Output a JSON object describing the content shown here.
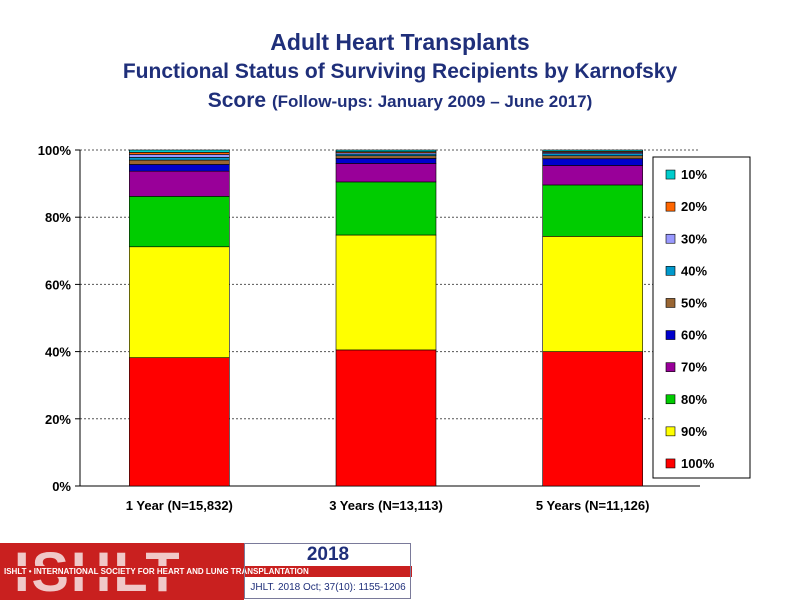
{
  "title": {
    "line1": "Adult Heart Transplants",
    "line2": "Functional Status of Surviving Recipients by Karnofsky",
    "line3_main": "Score",
    "line3_sub": "(Follow-ups: January 2009 – June 2017)"
  },
  "chart_data": {
    "type": "bar",
    "stacked": true,
    "categories": [
      "1 Year (N=15,832)",
      "3 Years (N=13,113)",
      "5 Years (N=11,126)"
    ],
    "y_tick_labels": [
      "0%",
      "20%",
      "40%",
      "60%",
      "80%",
      "100%"
    ],
    "ylim": [
      0,
      100
    ],
    "grid": true,
    "legend_placement": "right",
    "series": [
      {
        "name": "100%",
        "color": "#ff0000",
        "values": [
          38.2,
          40.5,
          40.0
        ]
      },
      {
        "name": "90%",
        "color": "#ffff00",
        "values": [
          33.0,
          34.2,
          34.3
        ]
      },
      {
        "name": "80%",
        "color": "#00cc00",
        "values": [
          15.0,
          15.8,
          15.3
        ]
      },
      {
        "name": "70%",
        "color": "#990099",
        "values": [
          7.5,
          5.5,
          5.8
        ]
      },
      {
        "name": "60%",
        "color": "#0000cc",
        "values": [
          2.0,
          1.5,
          2.0
        ]
      },
      {
        "name": "50%",
        "color": "#996633",
        "values": [
          1.3,
          0.8,
          0.9
        ]
      },
      {
        "name": "40%",
        "color": "#0099cc",
        "values": [
          0.8,
          0.5,
          0.6
        ]
      },
      {
        "name": "30%",
        "color": "#9999ff",
        "values": [
          0.9,
          0.4,
          0.4
        ]
      },
      {
        "name": "20%",
        "color": "#ff6600",
        "values": [
          0.6,
          0.3,
          0.3
        ]
      },
      {
        "name": "10%",
        "color": "#00cccc",
        "values": [
          0.7,
          0.5,
          0.4
        ]
      }
    ]
  },
  "footer": {
    "logo_text": "ISHLT",
    "band_text": "ISHLT • INTERNATIONAL SOCIETY FOR HEART AND LUNG TRANSPLANTATION",
    "year": "2018",
    "citation": "JHLT. 2018 Oct; 37(10): 1155-1206"
  }
}
